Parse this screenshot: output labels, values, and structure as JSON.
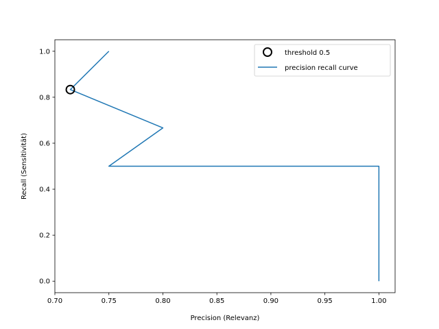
{
  "chart_data": {
    "type": "line",
    "title": "",
    "xlabel": "Precision (Relevanz)",
    "ylabel": "Recall (Sensitivität)",
    "xlim": [
      0.7,
      1.015
    ],
    "ylim": [
      -0.05,
      1.05
    ],
    "xticks": [
      0.7,
      0.75,
      0.8,
      0.85,
      0.9,
      0.95,
      1.0
    ],
    "xtick_labels": [
      "0.70",
      "0.75",
      "0.80",
      "0.85",
      "0.90",
      "0.95",
      "1.00"
    ],
    "yticks": [
      0.0,
      0.2,
      0.4,
      0.6,
      0.8,
      1.0
    ],
    "ytick_labels": [
      "0.0",
      "0.2",
      "0.4",
      "0.6",
      "0.8",
      "1.0"
    ],
    "grid": false,
    "legend_position": "top-right",
    "series": [
      {
        "name": "precision recall curve",
        "kind": "line",
        "color": "#1f77b4",
        "x": [
          0.75,
          0.7143,
          0.8,
          0.75,
          1.0,
          1.0
        ],
        "y": [
          1.0,
          0.8333,
          0.6667,
          0.5,
          0.5,
          0.0
        ]
      },
      {
        "name": "threshold 0.5",
        "kind": "marker",
        "marker": "open-circle",
        "color": "#000000",
        "x": [
          0.7143
        ],
        "y": [
          0.8333
        ]
      }
    ]
  }
}
